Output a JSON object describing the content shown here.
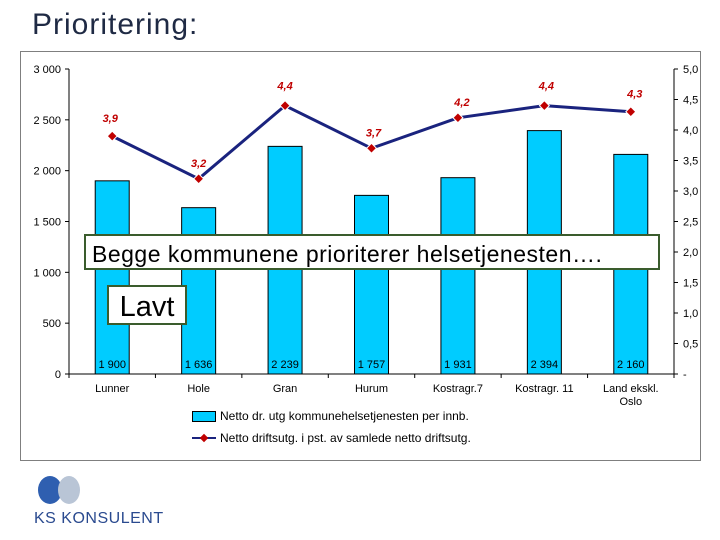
{
  "title": "Prioritering:",
  "chart_data": {
    "type": "bar",
    "categories": [
      "Lunner",
      "Hole",
      "Gran",
      "Hurum",
      "Kostragr.7",
      "Kostragr. 11",
      "Land ekskl. Oslo"
    ],
    "series": [
      {
        "name": "Netto dr. utg kommunehelsetjenesten per innb.",
        "type": "bar",
        "axis": "left",
        "values": [
          1900,
          1636,
          2239,
          1757,
          1931,
          2394,
          2160
        ],
        "labels": [
          "1 900",
          "1 636",
          "2 239",
          "1 757",
          "1 931",
          "2 394",
          "2 160"
        ]
      },
      {
        "name": "Netto driftsutg. i pst. av samlede netto driftsutg.",
        "type": "line",
        "axis": "right",
        "values": [
          3.9,
          3.2,
          4.4,
          3.7,
          4.2,
          4.4,
          4.3
        ],
        "labels": [
          "3,9",
          "3,2",
          "4,4",
          "3,7",
          "4,2",
          "4,4",
          "4,3"
        ]
      }
    ],
    "y_left": {
      "range": [
        0,
        3000
      ],
      "ticks": [
        "0",
        "500",
        "1 000",
        "1 500",
        "2 000",
        "2 500",
        "3 000"
      ]
    },
    "y_right": {
      "range": [
        0,
        5.0
      ],
      "ticks": [
        "-",
        "0,5",
        "1,0",
        "1,5",
        "2,0",
        "2,5",
        "3,0",
        "3,5",
        "4,0",
        "4,5",
        "5,0"
      ]
    },
    "legend_position": "bottom",
    "grid": false,
    "colors": {
      "bar": "#00ccff",
      "line": "#1a237e",
      "marker": "#c00000"
    }
  },
  "annotations": {
    "main": "Begge kommunene prioriterer helsetjenesten….",
    "low": "Lavt"
  },
  "logo": {
    "text": "KS KONSULENT"
  }
}
